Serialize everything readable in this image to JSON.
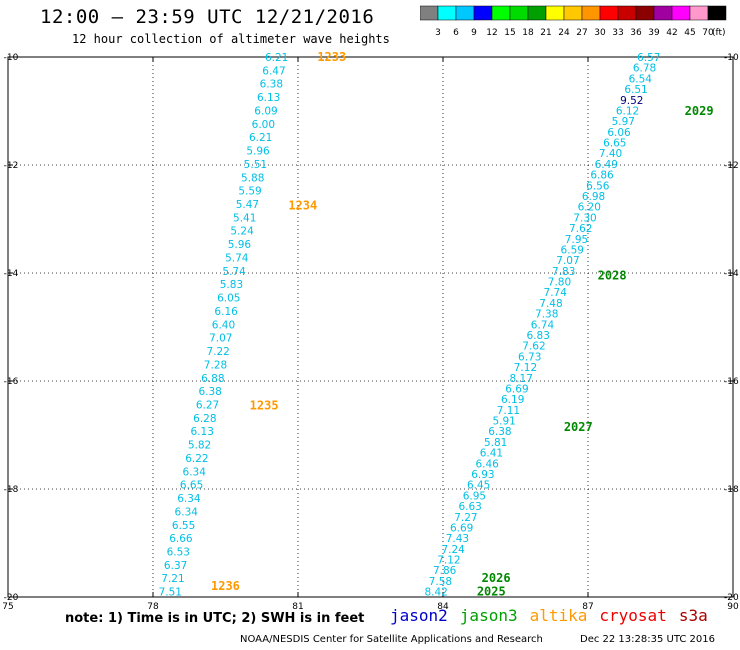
{
  "header": {
    "title": "12:00 – 23:59 UTC 12/21/2016",
    "subtitle": "12 hour collection of altimeter wave heights"
  },
  "colorbar": {
    "unit": "(ft)",
    "ticks": [
      "3",
      "6",
      "9",
      "12",
      "15",
      "18",
      "21",
      "24",
      "27",
      "30",
      "33",
      "36",
      "39",
      "42",
      "45",
      "70"
    ],
    "colors": [
      "#808080",
      "#00ffff",
      "#00c8ff",
      "#0000ff",
      "#00ff00",
      "#00dc00",
      "#00a000",
      "#ffff00",
      "#ffc800",
      "#ff9600",
      "#ff0000",
      "#c80000",
      "#8b0000",
      "#a000a0",
      "#ff00ff",
      "#ff99cc",
      "#000000"
    ]
  },
  "footer": {
    "note": "note: 1) Time is in UTC; 2) SWH is in feet",
    "legend": [
      {
        "name": "jason2",
        "color": "#0000cc"
      },
      {
        "name": "jason3",
        "color": "#00a000"
      },
      {
        "name": "altika",
        "color": "#ff9900"
      },
      {
        "name": "cryosat",
        "color": "#ee0000"
      },
      {
        "name": "s3a",
        "color": "#aa0000"
      }
    ],
    "credit": "NOAA/NESDIS Center for Satellite Applications and Research",
    "timestamp": "Dec 22 13:28:35 UTC 2016"
  },
  "chart_data": {
    "type": "scatter",
    "title": "12:00 – 23:59 UTC 12/21/2016",
    "subtitle": "12 hour collection of altimeter wave heights",
    "x_ticks": [
      "75",
      "78",
      "81",
      "84",
      "87",
      "90"
    ],
    "y_ticks": [
      "-10",
      "-12",
      "-14",
      "-16",
      "-18",
      "-20"
    ],
    "xlim": [
      75,
      90
    ],
    "ylim": [
      -20,
      -10
    ],
    "grid": true,
    "point_color": "#00bfe6",
    "tracks": [
      {
        "satellite": "altika",
        "color": "#ff9900",
        "start": [
          80.8,
          -10.0
        ],
        "end": [
          78.6,
          -19.9
        ],
        "values": [
          "6.21",
          "6.47",
          "6.38",
          "6.13",
          "6.09",
          "6.00",
          "6.21",
          "5.96",
          "5.51",
          "5.88",
          "5.59",
          "5.47",
          "5.41",
          "5.24",
          "5.96",
          "5.74",
          "5.74",
          "5.83",
          "6.05",
          "6.16",
          "6.40",
          "7.07",
          "7.22",
          "7.28",
          "6.88",
          "6.38",
          "6.27",
          "6.28",
          "6.13",
          "5.82",
          "6.22",
          "6.34",
          "6.65",
          "6.34",
          "6.34",
          "6.55",
          "6.66",
          "6.53",
          "6.37",
          "7.21",
          "7.51"
        ],
        "passes": [
          {
            "label": "1233",
            "x": 81.4,
            "y": -10.0
          },
          {
            "label": "1234",
            "x": 80.8,
            "y": -12.75
          },
          {
            "label": "1235",
            "x": 80.0,
            "y": -16.45
          },
          {
            "label": "1236",
            "x": 79.2,
            "y": -19.8
          }
        ]
      },
      {
        "satellite": "jason3",
        "color": "#008800",
        "start": [
          88.5,
          -10.0
        ],
        "end": [
          84.1,
          -19.9
        ],
        "values": [
          "6.57",
          "6.78",
          "6.54",
          "6.51",
          "9.52",
          "6.12",
          "5.97",
          "6.06",
          "6.65",
          "7.40",
          "6.49",
          "6.86",
          "6.56",
          "6.98",
          "6.20",
          "7.30",
          "7.62",
          "7.95",
          "6.59",
          "7.07",
          "7.83",
          "7.80",
          "7.74",
          "7.48",
          "7.38",
          "6.74",
          "6.83",
          "7.62",
          "6.73",
          "7.12",
          "8.17",
          "6.69",
          "6.19",
          "7.11",
          "5.91",
          "6.38",
          "5.81",
          "6.41",
          "6.46",
          "6.93",
          "6.45",
          "6.95",
          "6.63",
          "7.27",
          "6.69",
          "7.43",
          "7.24",
          "7.12",
          "7.86",
          "7.58",
          "8.42"
        ],
        "highlight_index": 4,
        "highlight_color": "#000080",
        "passes": [
          {
            "label": "2029",
            "x": 89.0,
            "y": -11.0
          },
          {
            "label": "2028",
            "x": 87.2,
            "y": -14.05
          },
          {
            "label": "2027",
            "x": 86.5,
            "y": -16.85
          },
          {
            "label": "2026",
            "x": 84.8,
            "y": -19.65
          },
          {
            "label": "2025",
            "x": 84.7,
            "y": -19.9
          }
        ]
      }
    ]
  }
}
